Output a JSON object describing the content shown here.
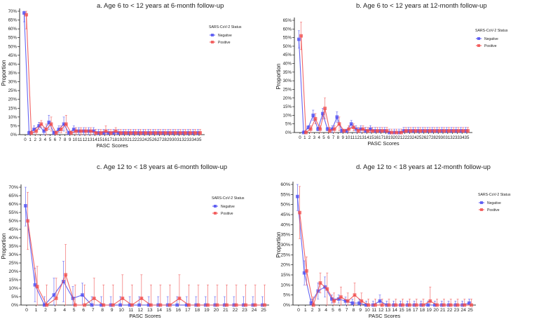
{
  "colors": {
    "negative": "#4a4af0",
    "positive": "#f04a4a",
    "axis": "#000000"
  },
  "chart_data": [
    {
      "type": "line",
      "title": "a. Age 6 to < 12 years at 6-month follow-up",
      "xlabel": "PASC Scores",
      "ylabel": "Proportion",
      "legend_title": "SARS-CoV-2 Status",
      "legend_position": "right",
      "ylim": [
        0,
        0.7
      ],
      "ytick_step": 0.05,
      "x": [
        0,
        1,
        2,
        3,
        4,
        5,
        6,
        7,
        8,
        9,
        10,
        11,
        12,
        13,
        14,
        15,
        16,
        17,
        18,
        19,
        20,
        21,
        22,
        23,
        24,
        25,
        26,
        27,
        28,
        29,
        30,
        31,
        32,
        33,
        34,
        35
      ],
      "series": [
        {
          "name": "Negative",
          "values": [
            0.69,
            0.01,
            0.03,
            0.05,
            0.02,
            0.07,
            0.01,
            0.03,
            0.06,
            0.01,
            0.03,
            0.02,
            0.02,
            0.02,
            0.02,
            0.01,
            0.01,
            0.01,
            0.01,
            0.01,
            0.01,
            0.01,
            0.01,
            0.01,
            0.01,
            0.01,
            0.01,
            0.01,
            0.01,
            0.01,
            0.01,
            0.01,
            0.01,
            0.01,
            0.01,
            0.01
          ],
          "err": [
            0.05,
            0.01,
            0.02,
            0.02,
            0.02,
            0.04,
            0.01,
            0.02,
            0.04,
            0.01,
            0.02,
            0.02,
            0.02,
            0.02,
            0.02,
            0.02,
            0.02,
            0.02,
            0.02,
            0.02,
            0.02,
            0.02,
            0.02,
            0.02,
            0.02,
            0.02,
            0.02,
            0.02,
            0.02,
            0.02,
            0.02,
            0.02,
            0.02,
            0.02,
            0.02,
            0.02
          ]
        },
        {
          "name": "Positive",
          "values": [
            0.68,
            0.01,
            0.02,
            0.06,
            0.03,
            0.06,
            0.01,
            0.03,
            0.06,
            0.01,
            0.02,
            0.02,
            0.02,
            0.02,
            0.01,
            0.01,
            0.02,
            0.01,
            0.02,
            0.01,
            0.01,
            0.01,
            0.01,
            0.01,
            0.01,
            0.01,
            0.01,
            0.01,
            0.01,
            0.01,
            0.01,
            0.01,
            0.01,
            0.01,
            0.01,
            0.01
          ],
          "err": [
            0.08,
            0.01,
            0.02,
            0.02,
            0.03,
            0.04,
            0.01,
            0.02,
            0.05,
            0.01,
            0.02,
            0.02,
            0.02,
            0.02,
            0.02,
            0.02,
            0.03,
            0.02,
            0.02,
            0.02,
            0.02,
            0.02,
            0.02,
            0.02,
            0.02,
            0.02,
            0.02,
            0.02,
            0.02,
            0.02,
            0.02,
            0.02,
            0.02,
            0.02,
            0.02,
            0.02
          ]
        }
      ]
    },
    {
      "type": "line",
      "title": "b. Age 6 to < 12 years at 12-month follow-up",
      "xlabel": "PASC Scores",
      "ylabel": "Proportion",
      "legend_title": "SARS-CoV-2 Status",
      "legend_position": "right",
      "ylim": [
        0,
        0.65
      ],
      "ytick_step": 0.05,
      "x": [
        0,
        1,
        2,
        3,
        4,
        5,
        6,
        7,
        8,
        9,
        10,
        11,
        12,
        13,
        14,
        15,
        16,
        17,
        18,
        19,
        20,
        21,
        22,
        23,
        24,
        25,
        26,
        27,
        28,
        29,
        30,
        31,
        32,
        33,
        34,
        35
      ],
      "series": [
        {
          "name": "Negative",
          "values": [
            0.54,
            0.0,
            0.03,
            0.1,
            0.02,
            0.11,
            0.02,
            0.02,
            0.09,
            0.01,
            0.01,
            0.05,
            0.02,
            0.02,
            0.01,
            0.02,
            0.01,
            0.01,
            0.01,
            0.0,
            0.0,
            0.0,
            0.01,
            0.01,
            0.01,
            0.01,
            0.01,
            0.01,
            0.01,
            0.01,
            0.01,
            0.01,
            0.01,
            0.01,
            0.01,
            0.01
          ],
          "err": [
            0.05,
            0.01,
            0.01,
            0.03,
            0.01,
            0.03,
            0.01,
            0.02,
            0.03,
            0.01,
            0.01,
            0.02,
            0.02,
            0.02,
            0.02,
            0.02,
            0.02,
            0.02,
            0.02,
            0.02,
            0.02,
            0.02,
            0.02,
            0.02,
            0.02,
            0.02,
            0.02,
            0.02,
            0.02,
            0.02,
            0.02,
            0.02,
            0.02,
            0.02,
            0.02,
            0.02
          ]
        },
        {
          "name": "Positive",
          "values": [
            0.56,
            0.0,
            0.02,
            0.08,
            0.02,
            0.14,
            0.01,
            0.02,
            0.05,
            0.01,
            0.02,
            0.03,
            0.01,
            0.02,
            0.01,
            0.01,
            0.01,
            0.01,
            0.01,
            0.0,
            0.0,
            0.0,
            0.01,
            0.01,
            0.01,
            0.01,
            0.01,
            0.01,
            0.01,
            0.01,
            0.01,
            0.01,
            0.01,
            0.01,
            0.01,
            0.01
          ],
          "err": [
            0.08,
            0.01,
            0.02,
            0.03,
            0.02,
            0.06,
            0.02,
            0.02,
            0.04,
            0.01,
            0.02,
            0.02,
            0.02,
            0.02,
            0.02,
            0.02,
            0.02,
            0.02,
            0.02,
            0.02,
            0.02,
            0.02,
            0.02,
            0.02,
            0.02,
            0.02,
            0.02,
            0.02,
            0.02,
            0.02,
            0.02,
            0.02,
            0.02,
            0.02,
            0.02,
            0.02
          ]
        }
      ]
    },
    {
      "type": "line",
      "title": "c. Age 12 to < 18 years at 6-month follow-up",
      "xlabel": "PASC Scores",
      "ylabel": "Proportion",
      "legend_title": "SARS-CoV-2 Status",
      "legend_position": "right",
      "ylim": [
        0,
        0.7
      ],
      "ytick_step": 0.05,
      "x": [
        0,
        1,
        2,
        3,
        4,
        5,
        6,
        7,
        8,
        9,
        10,
        11,
        12,
        13,
        14,
        15,
        16,
        17,
        18,
        19,
        20,
        21,
        22,
        23,
        24,
        25
      ],
      "series": [
        {
          "name": "Negative",
          "values": [
            0.59,
            0.12,
            0.0,
            0.06,
            0.14,
            0.04,
            0.06,
            0.0,
            0.0,
            0.0,
            0.0,
            0.0,
            0.0,
            0.0,
            0.0,
            0.0,
            0.0,
            0.0,
            0.0,
            0.0,
            0.0,
            0.0,
            0.0,
            0.0,
            0.0,
            0.0
          ],
          "err": [
            0.12,
            0.1,
            0.05,
            0.1,
            0.12,
            0.07,
            0.07,
            0.05,
            0.05,
            0.05,
            0.05,
            0.05,
            0.05,
            0.05,
            0.05,
            0.05,
            0.05,
            0.05,
            0.05,
            0.05,
            0.05,
            0.05,
            0.05,
            0.05,
            0.05,
            0.05
          ]
        },
        {
          "name": "Positive",
          "values": [
            0.5,
            0.11,
            0.0,
            0.04,
            0.18,
            0.0,
            0.0,
            0.04,
            0.0,
            0.0,
            0.04,
            0.0,
            0.04,
            0.0,
            0.0,
            0.0,
            0.04,
            0.0,
            0.0,
            0.0,
            0.0,
            0.0,
            0.0,
            0.0,
            0.0,
            0.0
          ],
          "err": [
            0.17,
            0.12,
            0.12,
            0.12,
            0.18,
            0.12,
            0.12,
            0.12,
            0.12,
            0.12,
            0.14,
            0.12,
            0.14,
            0.12,
            0.12,
            0.12,
            0.14,
            0.12,
            0.12,
            0.12,
            0.12,
            0.12,
            0.12,
            0.12,
            0.12,
            0.12
          ]
        }
      ]
    },
    {
      "type": "line",
      "title": "d. Age 12 to < 18 years at 12-month follow-up",
      "xlabel": "PASC Scores",
      "ylabel": "Proportion",
      "legend_title": "SARS-CoV-2 Status",
      "legend_position": "right",
      "ylim": [
        0,
        0.6
      ],
      "ytick_step": 0.05,
      "x": [
        0,
        1,
        2,
        3,
        4,
        5,
        6,
        7,
        8,
        9,
        10,
        11,
        12,
        13,
        14,
        15,
        16,
        17,
        18,
        19,
        20,
        21,
        22,
        23,
        24,
        25
      ],
      "series": [
        {
          "name": "Negative",
          "values": [
            0.54,
            0.16,
            0.01,
            0.07,
            0.09,
            0.03,
            0.03,
            0.02,
            0.01,
            0.01,
            0.0,
            0.0,
            0.02,
            0.0,
            0.0,
            0.0,
            0.0,
            0.0,
            0.0,
            0.0,
            0.0,
            0.0,
            0.0,
            0.0,
            0.0,
            0.01
          ],
          "err": [
            0.07,
            0.06,
            0.02,
            0.04,
            0.05,
            0.02,
            0.02,
            0.02,
            0.02,
            0.02,
            0.02,
            0.02,
            0.03,
            0.02,
            0.02,
            0.02,
            0.02,
            0.02,
            0.02,
            0.02,
            0.02,
            0.02,
            0.02,
            0.02,
            0.02,
            0.02
          ]
        },
        {
          "name": "Positive",
          "values": [
            0.46,
            0.17,
            0.0,
            0.11,
            0.08,
            0.02,
            0.04,
            0.02,
            0.05,
            0.02,
            0.0,
            0.0,
            0.0,
            0.0,
            0.0,
            0.0,
            0.0,
            0.0,
            0.0,
            0.02,
            0.0,
            0.0,
            0.0,
            0.0,
            0.0,
            0.0
          ],
          "err": [
            0.13,
            0.07,
            0.04,
            0.05,
            0.08,
            0.04,
            0.05,
            0.04,
            0.06,
            0.04,
            0.03,
            0.03,
            0.03,
            0.03,
            0.03,
            0.03,
            0.03,
            0.03,
            0.03,
            0.07,
            0.03,
            0.03,
            0.03,
            0.03,
            0.03,
            0.03
          ]
        }
      ]
    }
  ]
}
